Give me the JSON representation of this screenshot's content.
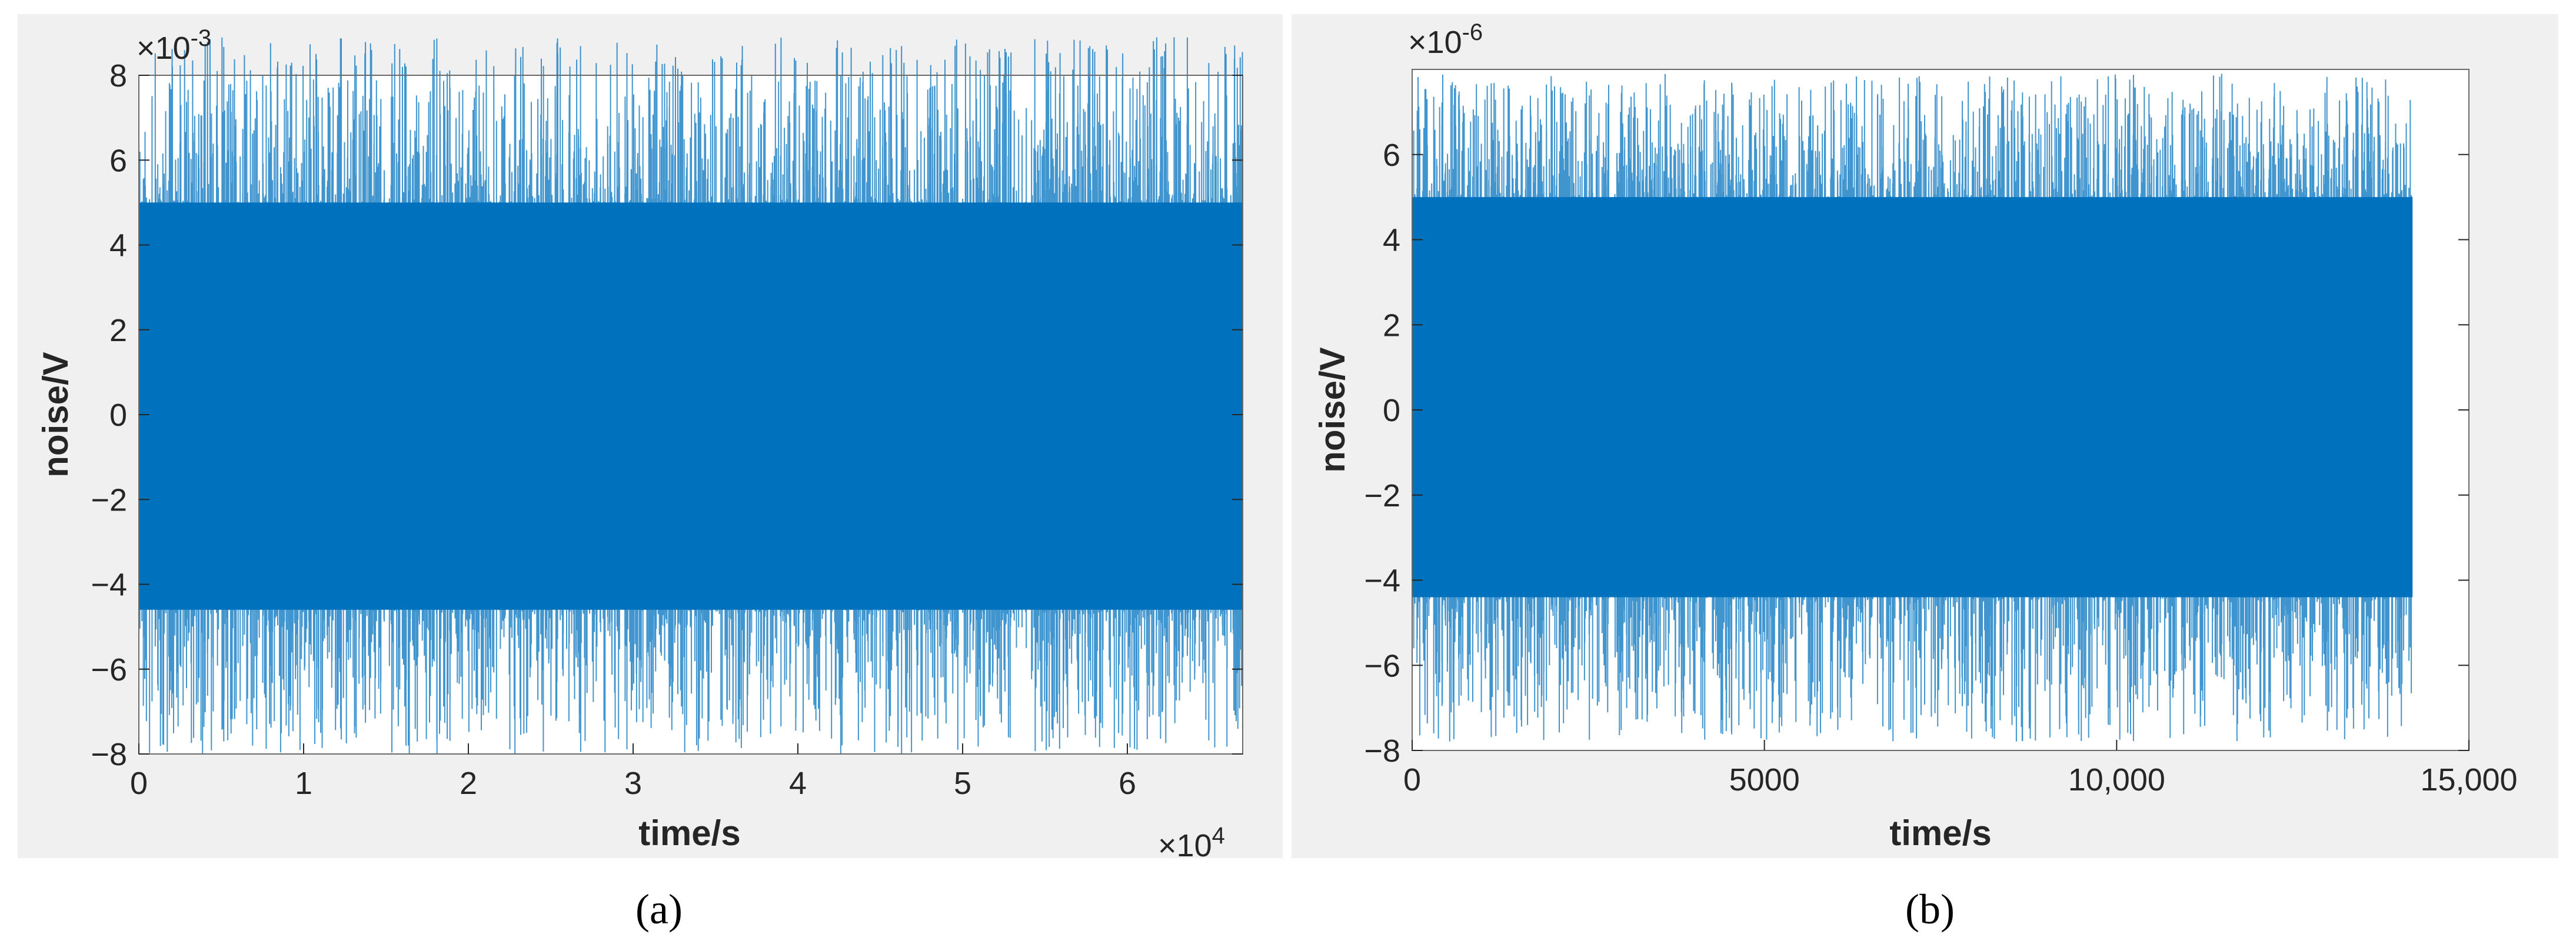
{
  "figure": {
    "background": "#f0f0f0",
    "series_color": "#0072bd",
    "axis_color": "#262626"
  },
  "chart_data": [
    {
      "type": "line",
      "caption": "(a)",
      "xlabel": "time/s",
      "ylabel": "noise/V",
      "x_exponent_label": "×10",
      "x_exponent_power": "4",
      "y_exponent_label": "×10",
      "y_exponent_power": "-3",
      "xlim": [
        0,
        6.7
      ],
      "ylim": [
        -8,
        8
      ],
      "xticks": [
        0,
        1,
        2,
        3,
        4,
        5,
        6
      ],
      "xtick_labels": [
        "0",
        "1",
        "2",
        "3",
        "4",
        "5",
        "6"
      ],
      "yticks": [
        -8,
        -6,
        -4,
        -2,
        0,
        2,
        4,
        6,
        8
      ],
      "ytick_labels": [
        "−8",
        "−6",
        "−4",
        "−2",
        "0",
        "2",
        "4",
        "6",
        "8"
      ],
      "x_range": [
        0,
        6.7
      ],
      "y_core_band": [
        -4.6,
        5.0
      ],
      "y_extremes": [
        -8.0,
        8.9
      ],
      "grid": false,
      "legend": "none"
    },
    {
      "type": "line",
      "caption": "(b)",
      "xlabel": "time/s",
      "ylabel": "noise/V",
      "y_exponent_label": "×10",
      "y_exponent_power": "-6",
      "xlim": [
        0,
        15000
      ],
      "ylim": [
        -8,
        8
      ],
      "xticks": [
        0,
        5000,
        10000,
        15000
      ],
      "xtick_labels": [
        "0",
        "5000",
        "10,000",
        "15,000"
      ],
      "yticks": [
        -8,
        -6,
        -4,
        -2,
        0,
        2,
        4,
        6
      ],
      "ytick_labels": [
        "−8",
        "−6",
        "−4",
        "−2",
        "0",
        "2",
        "4",
        "6"
      ],
      "x_range": [
        0,
        14200
      ],
      "y_core_band": [
        -4.4,
        5.0
      ],
      "y_extremes": [
        -7.8,
        7.9
      ],
      "grid": false,
      "legend": "none"
    }
  ]
}
